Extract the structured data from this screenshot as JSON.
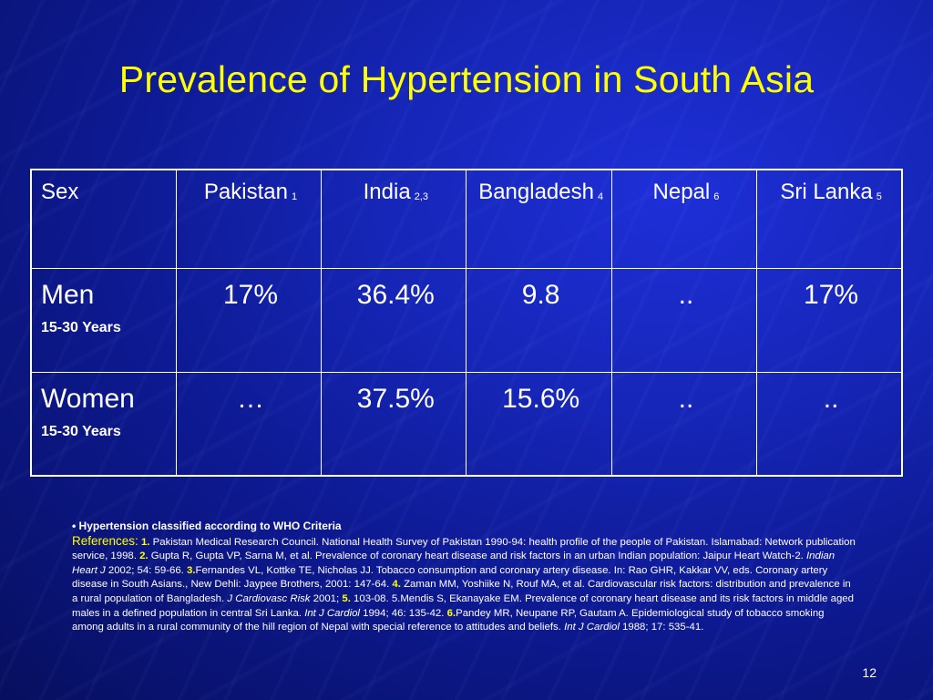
{
  "title": "Prevalence of Hypertension in South Asia",
  "table": {
    "headers": [
      {
        "label": "Sex",
        "ref": ""
      },
      {
        "label": "Pakistan",
        "ref": "1"
      },
      {
        "label": "India",
        "ref": "2,3"
      },
      {
        "label": "Bangladesh",
        "ref": "4"
      },
      {
        "label": "Nepal",
        "ref": "6"
      },
      {
        "label": "Sri Lanka",
        "ref": "5"
      }
    ],
    "rows": [
      {
        "sex": "Men",
        "age": "15-30 Years",
        "values": [
          "17%",
          "36.4%",
          "9.8",
          "..",
          "17%"
        ]
      },
      {
        "sex": "Women",
        "age": "15-30 Years",
        "values": [
          "…",
          "37.5%",
          "15.6%",
          "..",
          ".."
        ]
      }
    ]
  },
  "notes": {
    "criteria": "• Hypertension classified according to WHO Criteria",
    "references_label": "References:",
    "refs": [
      {
        "num": "1.",
        "text": " Pakistan Medical Research Council. National Health Survey of Pakistan 1990-94: health profile of the people of Pakistan. Islamabad: Network publication service, 1998. "
      },
      {
        "num": "2.",
        "text": " Gupta R, Gupta VP, Sarna M, et al. Prevalence of coronary heart disease and risk factors in an urban Indian population: Jaipur Heart Watch-2. ",
        "journal": "Indian Heart J",
        "tail": "  2002; 54: 59-66. "
      },
      {
        "num": "3.",
        "text": "Fernandes VL, Kottke TE, Nicholas JJ. Tobacco consumption and coronary artery disease. In: Rao GHR, Kakkar VV, eds. Coronary artery disease in South Asians., New Dehli: Jaypee Brothers, 2001: 147-64. "
      },
      {
        "num": "4.",
        "text": " Zaman MM, Yoshiike N, Rouf MA, et al. Cardiovascular risk factors: distribution and prevalence in a rural population of Bangladesh. ",
        "journal": "J Cardiovasc Risk",
        "tail": "  2001; "
      },
      {
        "num": "5.",
        "text": " 103-08. 5.Mendis S, Ekanayake EM. Prevalence of coronary heart disease and its risk factors in middle aged males in a defined population in central Sri Lanka. ",
        "journal": "Int J Cardiol",
        "tail": "  1994; 46: 135-42. "
      },
      {
        "num": "6.",
        "text": "Pandey MR, Neupane RP, Gautam A. Epidemiological study of tobacco smoking among adults in a rural community of the hill region of Nepal with special reference to attitudes and beliefs. ",
        "journal": "Int J Cardiol",
        "tail": "  1988; 17: 535-41."
      }
    ]
  },
  "page_number": "12",
  "colors": {
    "title": "#ffff00",
    "background": "#1626b8",
    "text": "#ffffff"
  }
}
